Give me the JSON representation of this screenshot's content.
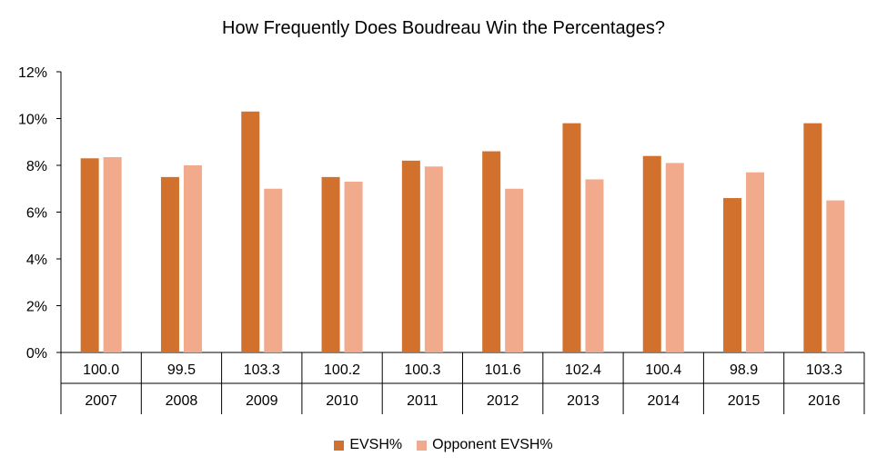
{
  "chart_data": {
    "type": "bar",
    "title": "How Frequently Does Boudreau Win the Percentages?",
    "categories": [
      "2007",
      "2008",
      "2009",
      "2010",
      "2011",
      "2012",
      "2013",
      "2014",
      "2015",
      "2016"
    ],
    "sub_labels": [
      "100.0",
      "99.5",
      "103.3",
      "100.2",
      "100.3",
      "101.6",
      "102.4",
      "100.4",
      "98.9",
      "103.3"
    ],
    "series": [
      {
        "name": "EVSH%",
        "color": "#d2712d",
        "values": [
          8.3,
          7.5,
          10.3,
          7.5,
          8.2,
          8.6,
          9.8,
          8.4,
          6.6,
          9.8
        ]
      },
      {
        "name": "Opponent EVSH%",
        "color": "#f2aa8d",
        "values": [
          8.35,
          8.0,
          7.0,
          7.3,
          7.95,
          7.0,
          7.4,
          8.1,
          7.7,
          6.5
        ]
      }
    ],
    "ylim": [
      0,
      12
    ],
    "yticks": [
      "0%",
      "2%",
      "4%",
      "6%",
      "8%",
      "10%",
      "12%"
    ],
    "grid": false,
    "legend_position": "bottom"
  }
}
